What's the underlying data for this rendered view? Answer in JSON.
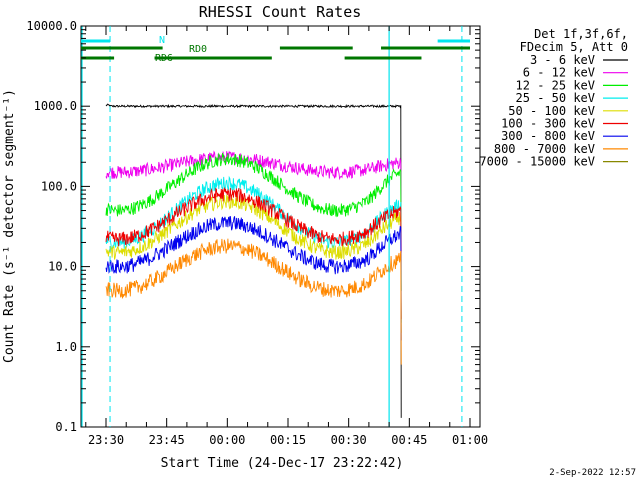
{
  "chart_data": {
    "type": "line",
    "title": "RHESSI Count Rates",
    "xlabel": "Start Time (24-Dec-17 23:22:42)",
    "ylabel": "Count Rate (s⁻¹ detector segment⁻¹)",
    "ylim": [
      0.1,
      10000
    ],
    "yscale": "log",
    "grid": false,
    "legend_placement": "right",
    "legend_header": [
      "Det 1f,3f,6f,",
      "FDecim 5, Att 0"
    ],
    "x_ticks": [
      "23:30",
      "23:45",
      "00:00",
      "00:15",
      "00:30",
      "00:45",
      "01:00"
    ],
    "y_ticks": [
      "0.1",
      "1.0",
      "10.0",
      "100.0",
      "1000.0",
      "10000.0"
    ],
    "time_axis_minutes_after_2300": {
      "data_start": 30,
      "data_end": 103
    },
    "series": [
      {
        "name": "3 - 6 keV",
        "color": "#000000",
        "values_note": "flat ~1000",
        "base": 1000,
        "amp": 1.0,
        "noise": 0.03
      },
      {
        "name": "6 - 12 keV",
        "color": "#ee00ee",
        "base": 150,
        "peak": 230,
        "trough": 150,
        "end": 200
      },
      {
        "name": "12 - 25 keV",
        "color": "#00ee00",
        "base": 50,
        "peak": 220,
        "trough": 50,
        "end": 180
      },
      {
        "name": "25 - 50 keV",
        "color": "#00eeee",
        "base": 20,
        "peak": 110,
        "trough": 20,
        "end": 60
      },
      {
        "name": "50 - 100 keV",
        "color": "#dddd00",
        "base": 15,
        "peak": 65,
        "trough": 15,
        "end": 45
      },
      {
        "name": "100 - 300 keV",
        "color": "#ee0000",
        "base": 22,
        "peak": 80,
        "trough": 22,
        "end": 50
      },
      {
        "name": "300 - 800 keV",
        "color": "#0000ee",
        "base": 12,
        "peak": 35,
        "trough": 10,
        "end": 30
      },
      {
        "name": "800 - 7000 keV",
        "color": "#ff8800",
        "base": 6,
        "peak": 18,
        "trough": 5,
        "end": 14
      },
      {
        "name": "7000 - 15000 keV",
        "color": "#888800",
        "base": null,
        "peak": null,
        "trough": null,
        "end": null
      }
    ],
    "annotations": {
      "N_label": "N",
      "RD0_label": "RD0",
      "RD6_label": "RD6",
      "footer_date": "2-Sep-2022 12:57"
    },
    "night_segments_minutes": [
      [
        23,
        31
      ],
      [
        112,
        120
      ]
    ],
    "rd0_segments_minutes": [
      [
        23,
        44
      ],
      [
        73,
        91
      ],
      [
        98,
        120
      ]
    ],
    "rd6_segments_minutes": [
      [
        23,
        32
      ],
      [
        42,
        71
      ],
      [
        89,
        108
      ]
    ],
    "cyan_vertical_solid_minutes": [
      23,
      100
    ],
    "cyan_vertical_dashed_minutes": [
      31,
      118
    ]
  }
}
